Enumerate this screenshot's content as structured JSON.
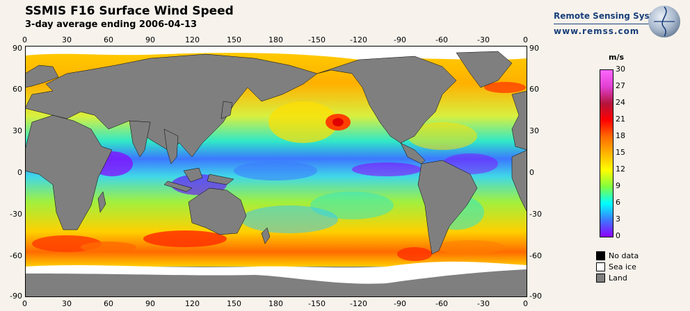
{
  "header": {
    "title": "SSMIS F16 Surface Wind Speed",
    "subtitle": "3-day average ending 2006-04-13",
    "brand": "Remote Sensing Systems",
    "url": "www.remss.com"
  },
  "map": {
    "lon_labels": [
      "0",
      "30",
      "60",
      "90",
      "120",
      "150",
      "180",
      "-150",
      "-120",
      "-90",
      "-60",
      "-30",
      "0"
    ],
    "lat_labels": [
      "90",
      "60",
      "30",
      "0",
      "-30",
      "-60",
      "-90"
    ]
  },
  "colorbar": {
    "unit": "m/s",
    "labels": [
      "30",
      "27",
      "24",
      "21",
      "18",
      "15",
      "12",
      "9",
      "6",
      "3",
      "0"
    ],
    "colors": [
      "#ff66ff",
      "#e040d0",
      "#b4143c",
      "#ff0000",
      "#ff6a00",
      "#ffb400",
      "#ffff00",
      "#80ff40",
      "#00ffff",
      "#3c78ff",
      "#8c00ff"
    ]
  },
  "legend": [
    {
      "label": "No data",
      "color": "#000000"
    },
    {
      "label": "Sea ice",
      "color": "#ffffff"
    },
    {
      "label": "Land",
      "color": "#7f7f7f"
    }
  ]
}
